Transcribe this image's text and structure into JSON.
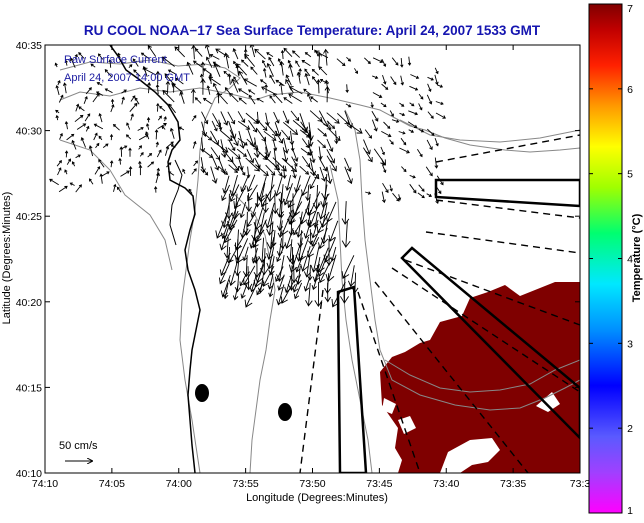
{
  "title": "RU COOL  NOAA−17  Sea Surface Temperature:  April 24, 2007 1533 GMT",
  "legend": {
    "line1": "Raw Surface Current",
    "line2": "April 24, 2007 14:00 GMT"
  },
  "scale_label": "50 cm/s",
  "axes": {
    "xlabel": "Longitude (Degrees:Minutes)",
    "ylabel": "Latitude (Degrees:Minutes)",
    "xticks": [
      "74:10",
      "74:05",
      "74:00",
      "73:55",
      "73:50",
      "73:45",
      "73:40",
      "73:35",
      "73:3"
    ],
    "yticks": [
      "40:35",
      "40:30",
      "40:25",
      "40:20",
      "40:15",
      "40:10"
    ]
  },
  "colorbar": {
    "label": "Temperature (°C)",
    "ticks": [
      "7",
      "6",
      "5",
      "4",
      "3",
      "2",
      "1"
    ],
    "range": [
      1,
      7
    ]
  },
  "colors": {
    "title": "#1515b0",
    "sst_patch": "#7f0000",
    "contour": "#888888"
  }
}
